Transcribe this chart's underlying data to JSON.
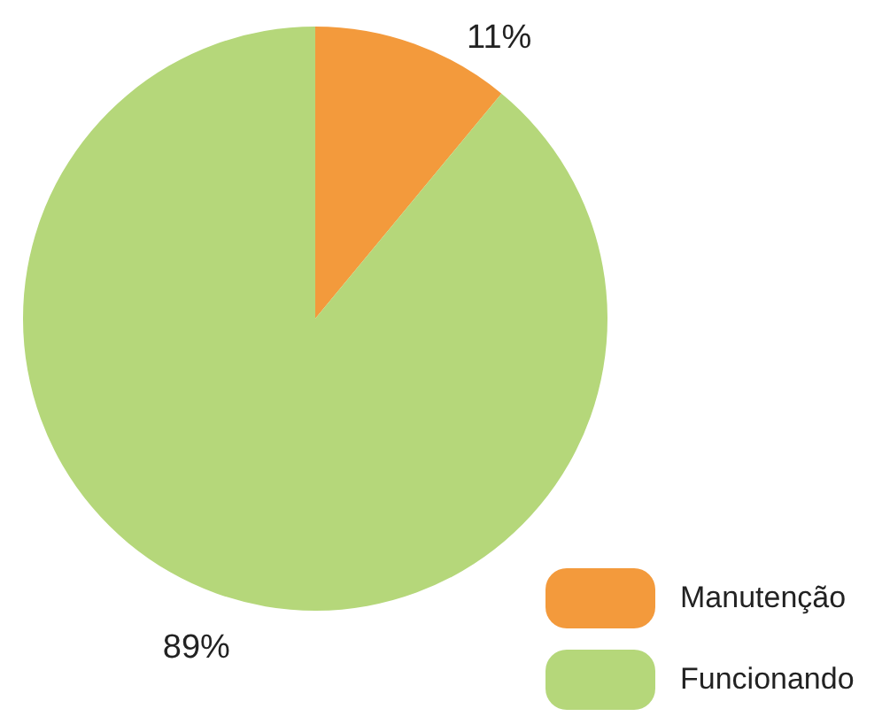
{
  "chart_data": {
    "type": "pie",
    "categories": [
      "Manutenção",
      "Funcionando"
    ],
    "values": [
      11,
      89
    ],
    "colors": [
      "#f39a3c",
      "#b5d77a"
    ],
    "value_labels": [
      "11%",
      "89%"
    ],
    "legend": "bottom right"
  }
}
